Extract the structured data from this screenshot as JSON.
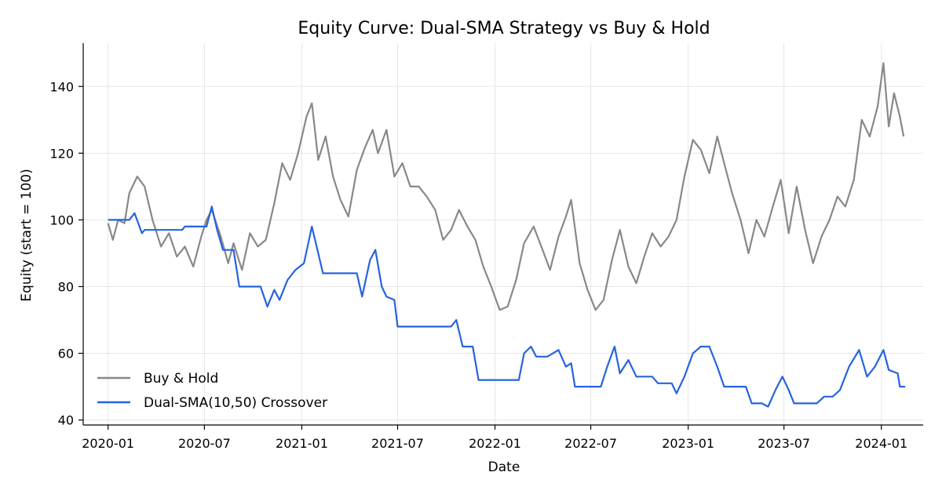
{
  "chart_data": {
    "type": "line",
    "title": "Equity Curve: Dual-SMA Strategy vs Buy & Hold",
    "xlabel": "Date",
    "ylabel": "Equity (start = 100)",
    "x_ticks": [
      "2020-01",
      "2020-07",
      "2021-01",
      "2021-07",
      "2022-01",
      "2022-07",
      "2023-01",
      "2023-07",
      "2024-01"
    ],
    "y_ticks": [
      40,
      60,
      80,
      100,
      120,
      140
    ],
    "xlim": [
      "2019-11-15",
      "2024-03-20"
    ],
    "ylim": [
      38.5,
      153
    ],
    "grid": true,
    "legend_position": "lower-left",
    "series": [
      {
        "name": "Buy & Hold",
        "color": "#888888",
        "points": [
          [
            "2020-01-01",
            99
          ],
          [
            "2020-01-10",
            94
          ],
          [
            "2020-01-20",
            100
          ],
          [
            "2020-02-01",
            99
          ],
          [
            "2020-02-10",
            108
          ],
          [
            "2020-02-25",
            113
          ],
          [
            "2020-03-10",
            110
          ],
          [
            "2020-03-25",
            100
          ],
          [
            "2020-04-10",
            92
          ],
          [
            "2020-04-25",
            96
          ],
          [
            "2020-05-10",
            89
          ],
          [
            "2020-05-25",
            92
          ],
          [
            "2020-06-10",
            86
          ],
          [
            "2020-06-25",
            95
          ],
          [
            "2020-07-05",
            100
          ],
          [
            "2020-07-15",
            103
          ],
          [
            "2020-08-01",
            95
          ],
          [
            "2020-08-15",
            87
          ],
          [
            "2020-08-25",
            93
          ],
          [
            "2020-09-10",
            85
          ],
          [
            "2020-09-25",
            96
          ],
          [
            "2020-10-10",
            92
          ],
          [
            "2020-10-25",
            94
          ],
          [
            "2020-11-10",
            105
          ],
          [
            "2020-11-25",
            117
          ],
          [
            "2020-12-10",
            112
          ],
          [
            "2020-12-25",
            120
          ],
          [
            "2021-01-10",
            131
          ],
          [
            "2021-01-20",
            135
          ],
          [
            "2021-02-01",
            118
          ],
          [
            "2021-02-15",
            125
          ],
          [
            "2021-03-01",
            113
          ],
          [
            "2021-03-15",
            106
          ],
          [
            "2021-03-30",
            101
          ],
          [
            "2021-04-15",
            115
          ],
          [
            "2021-05-01",
            122
          ],
          [
            "2021-05-15",
            127
          ],
          [
            "2021-05-25",
            120
          ],
          [
            "2021-06-10",
            127
          ],
          [
            "2021-06-25",
            113
          ],
          [
            "2021-07-10",
            117
          ],
          [
            "2021-07-25",
            110
          ],
          [
            "2021-08-10",
            110
          ],
          [
            "2021-08-25",
            107
          ],
          [
            "2021-09-10",
            103
          ],
          [
            "2021-09-25",
            94
          ],
          [
            "2021-10-10",
            97
          ],
          [
            "2021-10-25",
            103
          ],
          [
            "2021-11-10",
            98
          ],
          [
            "2021-11-25",
            94
          ],
          [
            "2021-12-10",
            86
          ],
          [
            "2021-12-25",
            80
          ],
          [
            "2022-01-10",
            73
          ],
          [
            "2022-01-25",
            74
          ],
          [
            "2022-02-10",
            82
          ],
          [
            "2022-02-25",
            93
          ],
          [
            "2022-03-15",
            98
          ],
          [
            "2022-04-01",
            91
          ],
          [
            "2022-04-15",
            85
          ],
          [
            "2022-05-01",
            95
          ],
          [
            "2022-05-15",
            101
          ],
          [
            "2022-05-25",
            106
          ],
          [
            "2022-06-10",
            87
          ],
          [
            "2022-06-25",
            79
          ],
          [
            "2022-07-10",
            73
          ],
          [
            "2022-07-25",
            76
          ],
          [
            "2022-08-10",
            88
          ],
          [
            "2022-08-25",
            97
          ],
          [
            "2022-09-10",
            86
          ],
          [
            "2022-09-25",
            81
          ],
          [
            "2022-10-10",
            89
          ],
          [
            "2022-10-25",
            96
          ],
          [
            "2022-11-10",
            92
          ],
          [
            "2022-11-25",
            95
          ],
          [
            "2022-12-10",
            100
          ],
          [
            "2022-12-25",
            113
          ],
          [
            "2023-01-10",
            124
          ],
          [
            "2023-01-25",
            121
          ],
          [
            "2023-02-10",
            114
          ],
          [
            "2023-02-25",
            125
          ],
          [
            "2023-03-10",
            117
          ],
          [
            "2023-03-25",
            108
          ],
          [
            "2023-04-10",
            100
          ],
          [
            "2023-04-25",
            90
          ],
          [
            "2023-05-10",
            100
          ],
          [
            "2023-05-25",
            95
          ],
          [
            "2023-06-10",
            104
          ],
          [
            "2023-06-25",
            112
          ],
          [
            "2023-07-10",
            96
          ],
          [
            "2023-07-25",
            110
          ],
          [
            "2023-08-10",
            97
          ],
          [
            "2023-08-25",
            87
          ],
          [
            "2023-09-10",
            95
          ],
          [
            "2023-09-25",
            100
          ],
          [
            "2023-10-10",
            107
          ],
          [
            "2023-10-25",
            104
          ],
          [
            "2023-11-10",
            112
          ],
          [
            "2023-11-25",
            130
          ],
          [
            "2023-12-10",
            125
          ],
          [
            "2023-12-25",
            134
          ],
          [
            "2024-01-05",
            147
          ],
          [
            "2024-01-15",
            128
          ],
          [
            "2024-01-25",
            138
          ],
          [
            "2024-02-05",
            131
          ],
          [
            "2024-02-12",
            125
          ]
        ]
      },
      {
        "name": "Dual-SMA(10,50) Crossover",
        "color": "#2563df",
        "points": [
          [
            "2020-01-01",
            100
          ],
          [
            "2020-02-10",
            100
          ],
          [
            "2020-02-20",
            102
          ],
          [
            "2020-03-05",
            96
          ],
          [
            "2020-03-10",
            97
          ],
          [
            "2020-05-20",
            97
          ],
          [
            "2020-05-25",
            98
          ],
          [
            "2020-07-05",
            98
          ],
          [
            "2020-07-15",
            104
          ],
          [
            "2020-07-25",
            97
          ],
          [
            "2020-08-05",
            91
          ],
          [
            "2020-08-25",
            91
          ],
          [
            "2020-09-05",
            80
          ],
          [
            "2020-10-15",
            80
          ],
          [
            "2020-10-28",
            74
          ],
          [
            "2020-11-10",
            79
          ],
          [
            "2020-11-20",
            76
          ],
          [
            "2020-12-05",
            82
          ],
          [
            "2020-12-20",
            85
          ],
          [
            "2021-01-05",
            87
          ],
          [
            "2021-01-20",
            98
          ],
          [
            "2021-02-01",
            90
          ],
          [
            "2021-02-10",
            84
          ],
          [
            "2021-04-15",
            84
          ],
          [
            "2021-04-25",
            77
          ],
          [
            "2021-05-10",
            88
          ],
          [
            "2021-05-20",
            91
          ],
          [
            "2021-06-01",
            80
          ],
          [
            "2021-06-10",
            77
          ],
          [
            "2021-06-25",
            76
          ],
          [
            "2021-07-01",
            68
          ],
          [
            "2021-10-10",
            68
          ],
          [
            "2021-10-20",
            70
          ],
          [
            "2021-11-01",
            62
          ],
          [
            "2021-11-20",
            62
          ],
          [
            "2021-12-01",
            52
          ],
          [
            "2022-02-15",
            52
          ],
          [
            "2022-02-25",
            60
          ],
          [
            "2022-03-10",
            62
          ],
          [
            "2022-03-20",
            59
          ],
          [
            "2022-04-10",
            59
          ],
          [
            "2022-05-01",
            61
          ],
          [
            "2022-05-15",
            56
          ],
          [
            "2022-05-25",
            57
          ],
          [
            "2022-06-01",
            50
          ],
          [
            "2022-07-20",
            50
          ],
          [
            "2022-08-01",
            56
          ],
          [
            "2022-08-15",
            62
          ],
          [
            "2022-08-25",
            54
          ],
          [
            "2022-09-10",
            58
          ],
          [
            "2022-09-25",
            53
          ],
          [
            "2022-10-25",
            53
          ],
          [
            "2022-11-05",
            51
          ],
          [
            "2022-12-01",
            51
          ],
          [
            "2022-12-10",
            48
          ],
          [
            "2022-12-25",
            53
          ],
          [
            "2023-01-10",
            60
          ],
          [
            "2023-01-25",
            62
          ],
          [
            "2023-02-10",
            62
          ],
          [
            "2023-02-25",
            56
          ],
          [
            "2023-03-10",
            50
          ],
          [
            "2023-04-20",
            50
          ],
          [
            "2023-05-01",
            45
          ],
          [
            "2023-05-20",
            45
          ],
          [
            "2023-06-01",
            44
          ],
          [
            "2023-06-15",
            49
          ],
          [
            "2023-06-28",
            53
          ],
          [
            "2023-07-10",
            49
          ],
          [
            "2023-07-20",
            45
          ],
          [
            "2023-09-01",
            45
          ],
          [
            "2023-09-15",
            47
          ],
          [
            "2023-10-01",
            47
          ],
          [
            "2023-10-15",
            49
          ],
          [
            "2023-11-01",
            56
          ],
          [
            "2023-11-20",
            61
          ],
          [
            "2023-12-05",
            53
          ],
          [
            "2023-12-20",
            56
          ],
          [
            "2024-01-05",
            61
          ],
          [
            "2024-01-15",
            55
          ],
          [
            "2024-02-01",
            54
          ],
          [
            "2024-02-05",
            50
          ],
          [
            "2024-02-15",
            50
          ]
        ]
      }
    ]
  }
}
